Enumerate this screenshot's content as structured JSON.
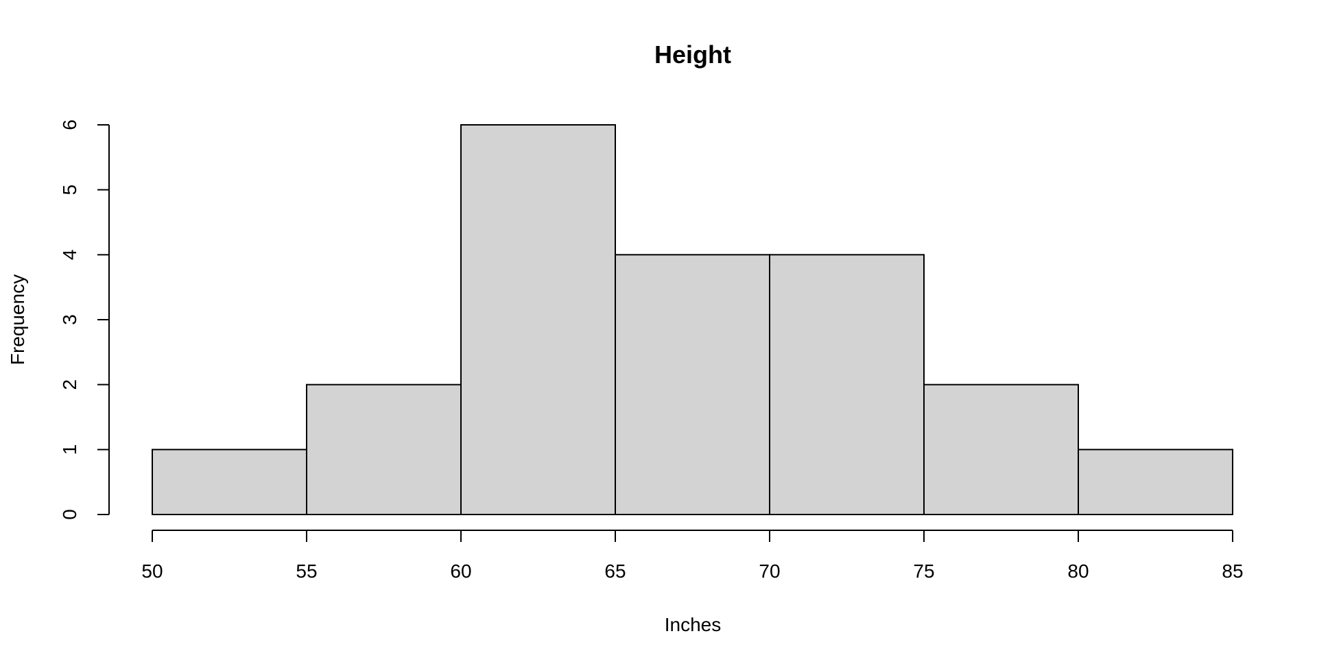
{
  "chart_data": {
    "type": "bar",
    "title": "Height",
    "xlabel": "Inches",
    "ylabel": "Frequency",
    "bins": [
      {
        "from": 50,
        "to": 55,
        "count": 1
      },
      {
        "from": 55,
        "to": 60,
        "count": 2
      },
      {
        "from": 60,
        "to": 65,
        "count": 6
      },
      {
        "from": 65,
        "to": 70,
        "count": 4
      },
      {
        "from": 70,
        "to": 75,
        "count": 4
      },
      {
        "from": 75,
        "to": 80,
        "count": 2
      },
      {
        "from": 80,
        "to": 85,
        "count": 1
      }
    ],
    "xlim": [
      50,
      85
    ],
    "ylim": [
      0,
      6
    ],
    "x_ticks": [
      "50",
      "55",
      "60",
      "65",
      "70",
      "75",
      "80",
      "85"
    ],
    "y_ticks": [
      "0",
      "1",
      "2",
      "3",
      "4",
      "5",
      "6"
    ],
    "grid": false,
    "legend": "none",
    "colors": {
      "bar_fill": "#d3d3d3",
      "bar_stroke": "#000000",
      "axis": "#000000"
    }
  }
}
